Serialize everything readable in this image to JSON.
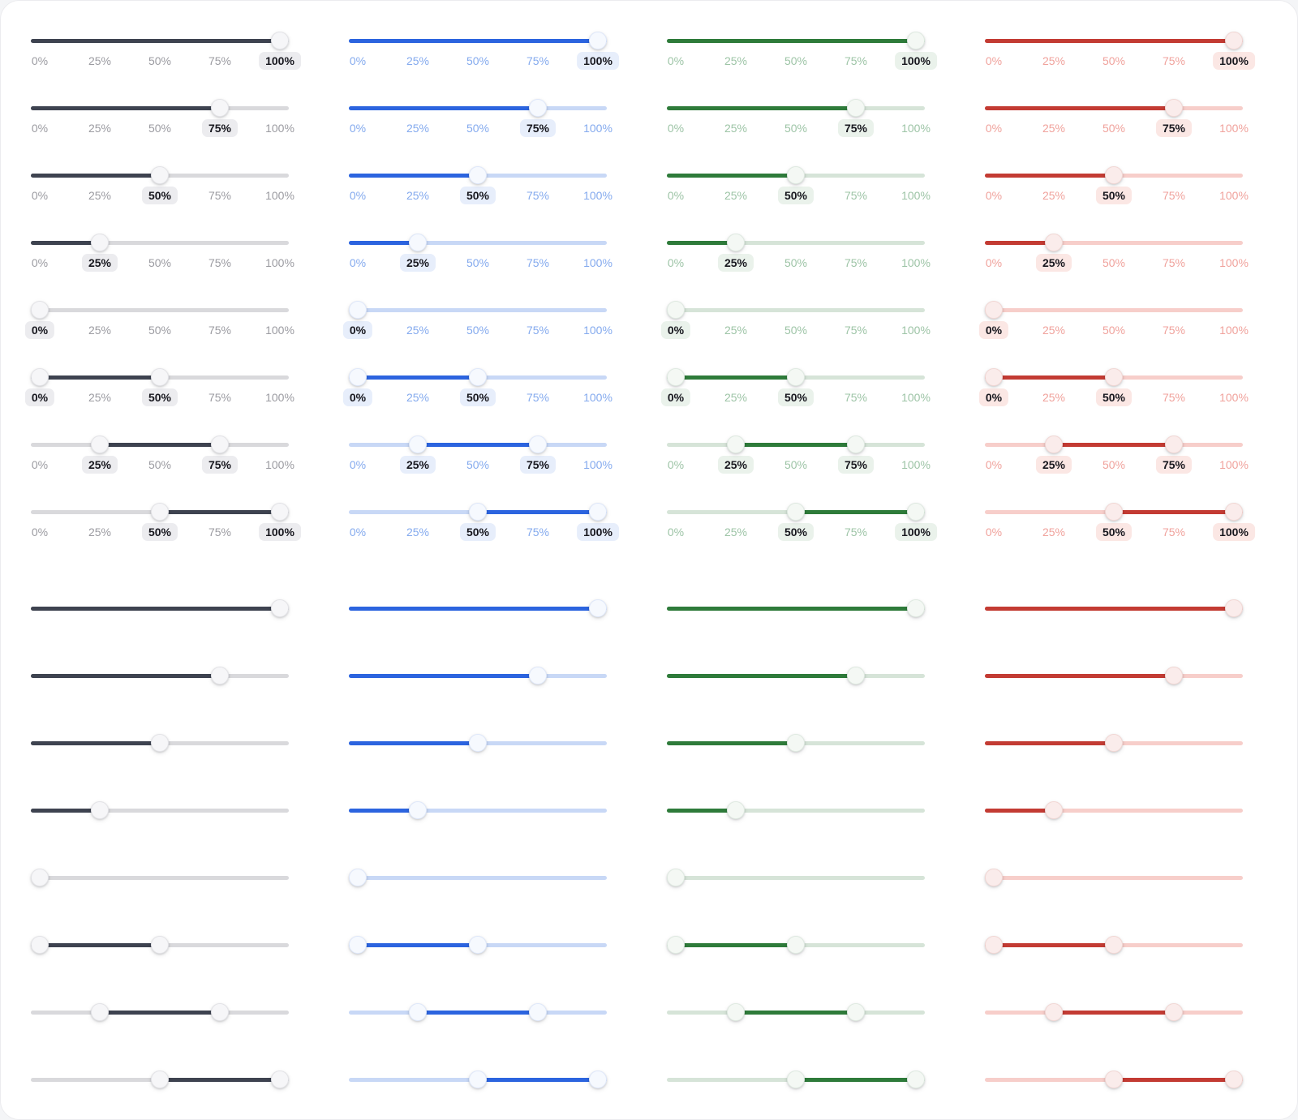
{
  "ticks": [
    {
      "label": "0%",
      "value": 0
    },
    {
      "label": "25%",
      "value": 25
    },
    {
      "label": "50%",
      "value": 50
    },
    {
      "label": "75%",
      "value": 75
    },
    {
      "label": "100%",
      "value": 100
    }
  ],
  "variants": [
    {
      "name": "default",
      "colors": {
        "fill": "#3E4350",
        "rest": "#D9D9DC",
        "tick": "#9B9BA1",
        "pill": "#ECECEF",
        "pill_text": "#17171E",
        "handle": "#F6F6F8",
        "handle_border": "#E3E3E7"
      }
    },
    {
      "name": "primary-blue",
      "colors": {
        "fill": "#2C64DF",
        "rest": "#C8D8F6",
        "tick": "#84AAEE",
        "pill": "#E7EEFB",
        "pill_text": "#17171E",
        "handle": "#F6F9FE",
        "handle_border": "#DFE8FA"
      }
    },
    {
      "name": "success-green",
      "colors": {
        "fill": "#2E7B3A",
        "rest": "#D6E4D8",
        "tick": "#9DC4A6",
        "pill": "#EAF2EB",
        "pill_text": "#17171E",
        "handle": "#F4F8F4",
        "handle_border": "#DFEAE1"
      }
    },
    {
      "name": "danger-red",
      "colors": {
        "fill": "#C33B33",
        "rest": "#F7CECA",
        "tick": "#F0A29C",
        "pill": "#FBE7E4",
        "pill_text": "#17171E",
        "handle": "#FAECEB",
        "handle_border": "#F2D7D4"
      }
    }
  ],
  "sections": [
    {
      "name": "with-tick-labels",
      "show_labels": true,
      "rows": [
        {
          "values": [
            100
          ]
        },
        {
          "values": [
            75
          ]
        },
        {
          "values": [
            50
          ]
        },
        {
          "values": [
            25
          ]
        },
        {
          "values": [
            0
          ]
        },
        {
          "values": [
            0,
            50
          ]
        },
        {
          "values": [
            25,
            75
          ]
        },
        {
          "values": [
            50,
            100
          ]
        }
      ]
    },
    {
      "name": "without-tick-labels",
      "show_labels": false,
      "rows": [
        {
          "values": [
            100
          ]
        },
        {
          "values": [
            75
          ]
        },
        {
          "values": [
            50
          ]
        },
        {
          "values": [
            25
          ]
        },
        {
          "values": [
            0
          ]
        },
        {
          "values": [
            0,
            50
          ]
        },
        {
          "values": [
            25,
            75
          ]
        },
        {
          "values": [
            50,
            100
          ]
        }
      ]
    }
  ]
}
